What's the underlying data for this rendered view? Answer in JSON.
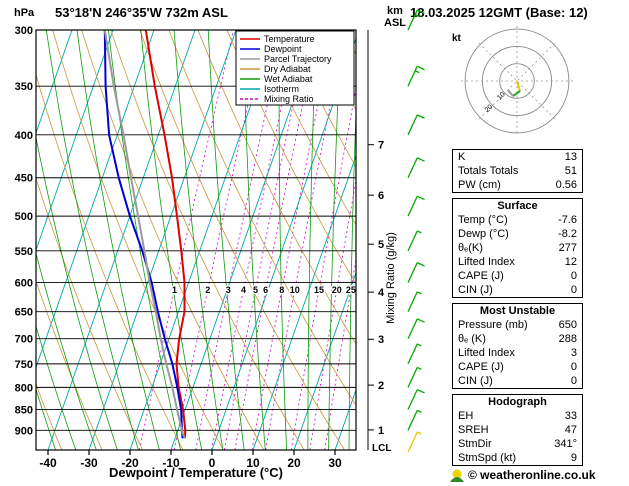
{
  "header": {
    "pressure_unit": "hPa",
    "station": "53°18'N 246°35'W 732m ASL",
    "km_label": "km",
    "asl_label": "ASL",
    "datetime": "18.03.2025 12GMT (Base: 12)"
  },
  "labels": {
    "x_axis": "Dewpoint / Temperature (°C)",
    "mixing_ratio_axis": "Mixing Ratio (g/kg)",
    "lcl": "LCL",
    "hodograph_unit": "kt"
  },
  "colors": {
    "temperature": "#e00000",
    "dewpoint": "#0000d8",
    "parcel": "#9a9a9a",
    "dry_adiabat": "#c8973c",
    "wet_adiabat": "#0f9b0f",
    "isotherm": "#00a8a8",
    "mixing_ratio": "#cc00cc",
    "wind_barb": "#00aa00",
    "surface_wind_barb": "#ddcc00",
    "grid": "#000000"
  },
  "legend": [
    {
      "label": "Temperature",
      "color": "#e00000",
      "dashed": false
    },
    {
      "label": "Dewpoint",
      "color": "#0000d8",
      "dashed": false
    },
    {
      "label": "Parcel Trajectory",
      "color": "#9a9a9a",
      "dashed": false
    },
    {
      "label": "Dry Adiabat",
      "color": "#c8973c",
      "dashed": false
    },
    {
      "label": "Wet Adiabat",
      "color": "#0f9b0f",
      "dashed": false
    },
    {
      "label": "Isotherm",
      "color": "#00a8a8",
      "dashed": false
    },
    {
      "label": "Mixing Ratio",
      "color": "#cc00cc",
      "dashed": true
    }
  ],
  "chart_data": {
    "type": "line",
    "diagram": "skew-t-log-p-sounding",
    "title": "53°18'N 246°35'W 732m ASL",
    "subtitle": "18.03.2025 12GMT (Base: 12)",
    "xlabel": "Dewpoint / Temperature (°C)",
    "ylabel": "hPa",
    "x_ticks": [
      -40,
      -30,
      -20,
      -10,
      0,
      10,
      20,
      30
    ],
    "x_range": [
      -45,
      38
    ],
    "pressure_ticks": [
      300,
      350,
      400,
      450,
      500,
      550,
      600,
      650,
      700,
      750,
      800,
      850,
      900
    ],
    "pressure_range": [
      300,
      950
    ],
    "km_ticks": [
      1,
      2,
      3,
      4,
      5,
      6,
      7
    ],
    "lcl_pressure": 910,
    "mixing_ratio_lines": [
      1,
      2,
      3,
      4,
      5,
      6,
      8,
      10,
      15,
      20,
      25
    ],
    "series": [
      {
        "name": "Temperature",
        "color": "#e00000",
        "pressure": [
          920,
          900,
          850,
          800,
          750,
          700,
          650,
          600,
          550,
          500,
          450,
          400,
          350,
          300
        ],
        "temp_c": [
          -7.6,
          -8.2,
          -10.5,
          -13.5,
          -16,
          -17.5,
          -18.5,
          -21,
          -24.5,
          -28.5,
          -33,
          -38.5,
          -45,
          -52
        ]
      },
      {
        "name": "Dewpoint",
        "color": "#0000d8",
        "pressure": [
          920,
          900,
          850,
          800,
          750,
          700,
          650,
          600,
          550,
          500,
          450,
          400,
          350,
          300
        ],
        "temp_c": [
          -8.2,
          -9,
          -11,
          -13.8,
          -17,
          -21,
          -25,
          -29,
          -34,
          -40,
          -46,
          -52,
          -57,
          -62
        ]
      },
      {
        "name": "Parcel Trajectory",
        "color": "#9a9a9a",
        "pressure": [
          920,
          910,
          850,
          800,
          750,
          700,
          650,
          600,
          550,
          500,
          450,
          400,
          350,
          300
        ],
        "temp_c": [
          -7.6,
          -8.4,
          -12,
          -15,
          -18.5,
          -22,
          -25.5,
          -29.5,
          -33.5,
          -38,
          -43,
          -48.5,
          -55,
          -62
        ]
      }
    ],
    "wind_barbs": [
      {
        "p": 300,
        "kt": 15
      },
      {
        "p": 350,
        "kt": 15
      },
      {
        "p": 400,
        "kt": 10
      },
      {
        "p": 450,
        "kt": 10
      },
      {
        "p": 500,
        "kt": 10
      },
      {
        "p": 550,
        "kt": 5
      },
      {
        "p": 600,
        "kt": 10
      },
      {
        "p": 650,
        "kt": 5
      },
      {
        "p": 700,
        "kt": 10
      },
      {
        "p": 750,
        "kt": 5
      },
      {
        "p": 800,
        "kt": 5
      },
      {
        "p": 850,
        "kt": 10
      },
      {
        "p": 900,
        "kt": 5
      },
      {
        "p": 955,
        "kt": 5,
        "color": "#ddcc00"
      }
    ]
  },
  "hodograph": {
    "unit_label": "kt",
    "rings_kt": [
      10,
      20,
      30
    ],
    "ring_labels": [
      "10",
      "20"
    ],
    "trace_segments": [
      {
        "color": "#ddcc00",
        "points": [
          [
            0,
            0
          ],
          [
            3,
            10
          ]
        ]
      },
      {
        "color": "#22aa22",
        "points": [
          [
            3,
            10
          ],
          [
            -4,
            15
          ]
        ]
      },
      {
        "color": "#9a9a9a",
        "points": [
          [
            -4,
            15
          ],
          [
            -9,
            9
          ]
        ]
      }
    ]
  },
  "stats_tables": [
    {
      "header": "",
      "rows": [
        {
          "label": "K",
          "value": "13"
        },
        {
          "label": "Totals Totals",
          "value": "51"
        },
        {
          "label": "PW (cm)",
          "value": "0.56"
        }
      ]
    },
    {
      "header": "Surface",
      "rows": [
        {
          "label": "Temp (°C)",
          "value": "-7.6"
        },
        {
          "label": "Dewp (°C)",
          "value": "-8.2"
        },
        {
          "label": "θₑ(K)",
          "value": "277"
        },
        {
          "label": "Lifted Index",
          "value": "12"
        },
        {
          "label": "CAPE (J)",
          "value": "0"
        },
        {
          "label": "CIN (J)",
          "value": "0"
        }
      ]
    },
    {
      "header": "Most Unstable",
      "rows": [
        {
          "label": "Pressure (mb)",
          "value": "650"
        },
        {
          "label": "θₑ (K)",
          "value": "288"
        },
        {
          "label": "Lifted Index",
          "value": "3"
        },
        {
          "label": "CAPE (J)",
          "value": "0"
        },
        {
          "label": "CIN (J)",
          "value": "0"
        }
      ]
    },
    {
      "header": "Hodograph",
      "rows": [
        {
          "label": "EH",
          "value": "33"
        },
        {
          "label": "SREH",
          "value": "47"
        },
        {
          "label": "StmDir",
          "value": "341°"
        },
        {
          "label": "StmSpd (kt)",
          "value": "9"
        }
      ]
    }
  ],
  "footer": {
    "copyright": "© weatheronline.co.uk"
  }
}
